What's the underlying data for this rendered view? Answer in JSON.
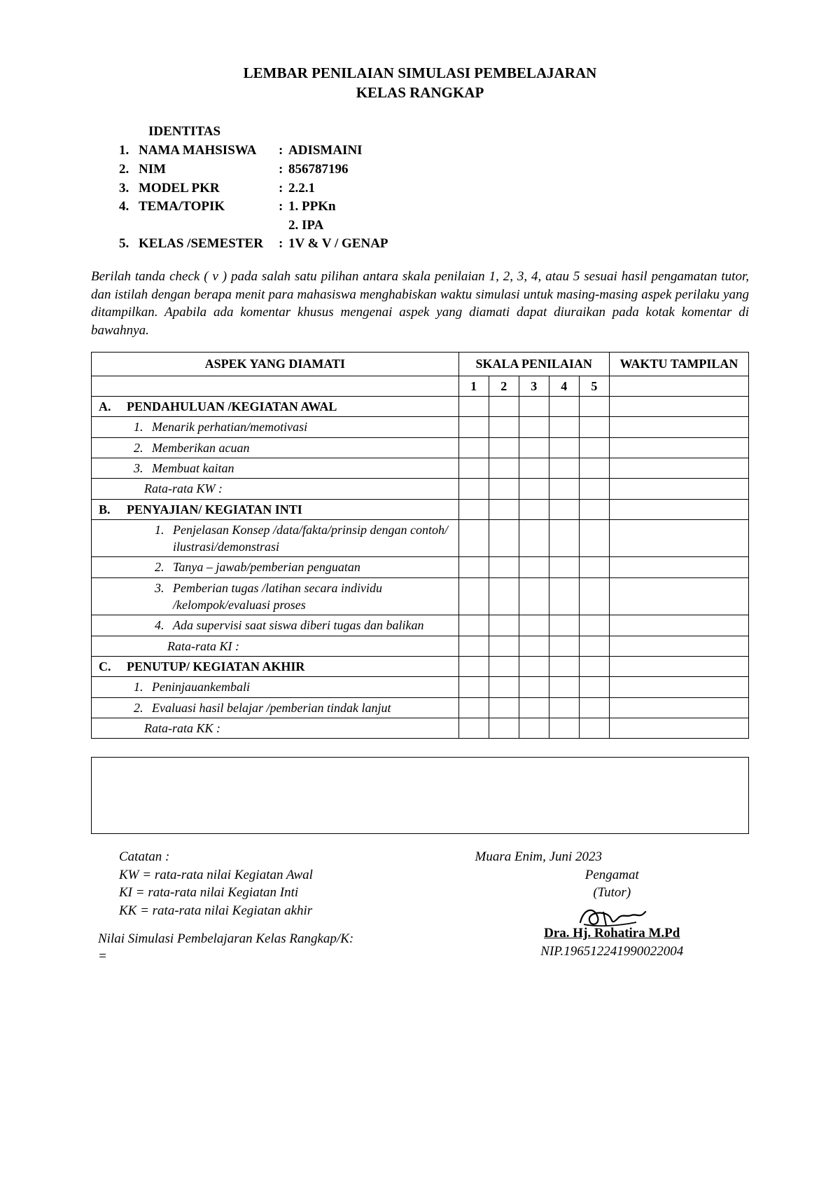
{
  "title": {
    "line1": "LEMBAR PENILAIAN SIMULASI PEMBELAJARAN",
    "line2": "KELAS RANGKAP"
  },
  "identity": {
    "header": "IDENTITAS",
    "rows": [
      {
        "num": "1.",
        "label": "NAMA MAHSISWA",
        "value": "ADISMAINI"
      },
      {
        "num": "2.",
        "label": "NIM",
        "value": "856787196"
      },
      {
        "num": "3.",
        "label": "MODEL PKR",
        "value": "2.2.1"
      },
      {
        "num": "4.",
        "label": "TEMA/TOPIK",
        "value": "1. PPKn"
      },
      {
        "num": "5.",
        "label": "KELAS /SEMESTER",
        "value": "1V & V / GENAP"
      }
    ],
    "topic_sub": "2. IPA"
  },
  "instructions": "Berilah tanda check ( v ) pada salah satu pilihan antara skala penilaian 1, 2, 3, 4, atau 5 sesuai hasil pengamatan tutor, dan istilah dengan berapa menit para mahasiswa menghabiskan waktu simulasi untuk masing-masing aspek perilaku yang ditampilkan. Apabila ada komentar khusus mengenai aspek yang diamati dapat diuraikan pada kotak komentar di bawahnya.",
  "table": {
    "header_aspect": "ASPEK YANG DIAMATI",
    "header_scale": "SKALA PENILAIAN",
    "header_waktu": "WAKTU TAMPILAN",
    "scale_nums": [
      "1",
      "2",
      "3",
      "4",
      "5"
    ],
    "rows": [
      {
        "type": "section",
        "marker": "A.",
        "text": "PENDAHULUAN /KEGIATAN AWAL"
      },
      {
        "type": "itemA",
        "marker": "1.",
        "text": "Menarik perhatian/memotivasi"
      },
      {
        "type": "itemA",
        "marker": "2.",
        "text": "Memberikan acuan"
      },
      {
        "type": "itemA",
        "marker": "3.",
        "text": "Membuat kaitan"
      },
      {
        "type": "avgA",
        "text": "Rata-rata KW :"
      },
      {
        "type": "section",
        "marker": "B.",
        "text": "PENYAJIAN/ KEGIATAN INTI"
      },
      {
        "type": "itemB",
        "marker": "1.",
        "text": "Penjelasan Konsep /data/fakta/prinsip dengan contoh/ ilustrasi/demonstrasi"
      },
      {
        "type": "itemB",
        "marker": "2.",
        "text": "Tanya – jawab/pemberian penguatan"
      },
      {
        "type": "itemB",
        "marker": "3.",
        "text": "Pemberian tugas /latihan secara individu /kelompok/evaluasi proses"
      },
      {
        "type": "itemB",
        "marker": "4.",
        "text": "Ada supervisi saat siswa diberi tugas dan balikan"
      },
      {
        "type": "avgB",
        "text": "Rata-rata KI :"
      },
      {
        "type": "section",
        "marker": "C.",
        "text": "PENUTUP/ KEGIATAN AKHIR"
      },
      {
        "type": "itemA",
        "marker": "1.",
        "text": "Peninjauankembali"
      },
      {
        "type": "itemA",
        "marker": "2.",
        "text": "Evaluasi hasil belajar /pemberian tindak lanjut"
      },
      {
        "type": "avgA",
        "text": "Rata-rata KK :"
      }
    ]
  },
  "footer": {
    "catatan_label": "Catatan :",
    "kw": "KW = rata-rata nilai Kegiatan Awal",
    "ki": "KI   = rata-rata nilai Kegiatan Inti",
    "kk": "KK = rata-rata nilai Kegiatan akhir",
    "nilai_label": "Nilai Simulasi Pembelajaran Kelas Rangkap/K:",
    "equals": "=",
    "place_date": "Muara Enim,      Juni 2023",
    "pengamat": "Pengamat",
    "tutor": "(Tutor)",
    "sig_name": "Dra. Hj. Rohatira M.Pd",
    "sig_nip": "NIP.196512241990022004"
  }
}
